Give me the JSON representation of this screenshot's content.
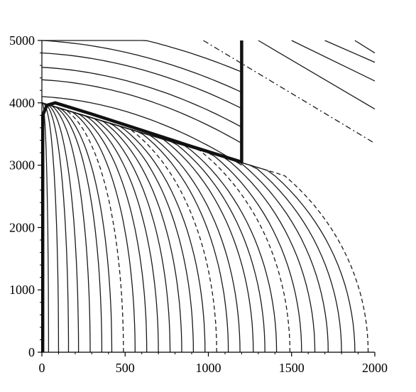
{
  "chart_data": {
    "type": "line",
    "title": "",
    "xlabel": "",
    "ylabel": "",
    "xlim": [
      0,
      2000
    ],
    "ylim": [
      0,
      5000
    ],
    "grid": false,
    "x_ticks": [
      0,
      500,
      1000,
      1500,
      2000
    ],
    "y_ticks": [
      0,
      1000,
      2000,
      3000,
      4000,
      5000
    ],
    "x_tick_labels": [
      "0",
      "500",
      "1000",
      "1500",
      "2000"
    ],
    "y_tick_labels": [
      "0",
      "1000",
      "2000",
      "3000",
      "4000",
      "5000"
    ],
    "line_color": "#1a1a1a",
    "contours": {
      "inner_radii": [
        40,
        100,
        160,
        220,
        290,
        360,
        420,
        490,
        560,
        630,
        700,
        770,
        840,
        910,
        980,
        1050,
        1120,
        1190,
        1270,
        1340,
        1410,
        1490,
        1560,
        1640,
        1720,
        1800,
        1880,
        1960
      ],
      "inner_top": 4000,
      "inner_dashed": [
        490,
        1050,
        1490,
        1960
      ],
      "top_curve_offsets_y": [
        -1,
        100,
        370,
        570,
        800,
        1000,
        1250
      ],
      "outer_lines": [
        {
          "x0": 1300,
          "y0": 5000,
          "x1": 2000,
          "y1": 3900
        },
        {
          "x0": 1500,
          "y0": 5000,
          "x1": 2000,
          "y1": 4350
        },
        {
          "x0": 1700,
          "y0": 5000,
          "x1": 2000,
          "y1": 4650
        },
        {
          "x0": 1880,
          "y0": 5000,
          "x1": 2000,
          "y1": 4800
        }
      ],
      "outer_dashed_line": {
        "x0": 970,
        "y0": 5000,
        "x1": 2000,
        "y1": 3350
      }
    },
    "boundary": {
      "x": [
        5,
        5,
        30,
        80,
        300,
        600,
        900,
        1200,
        1200,
        1200
      ],
      "y": [
        0,
        3800,
        3960,
        4000,
        3820,
        3560,
        3300,
        3050,
        3050,
        5000
      ]
    }
  }
}
